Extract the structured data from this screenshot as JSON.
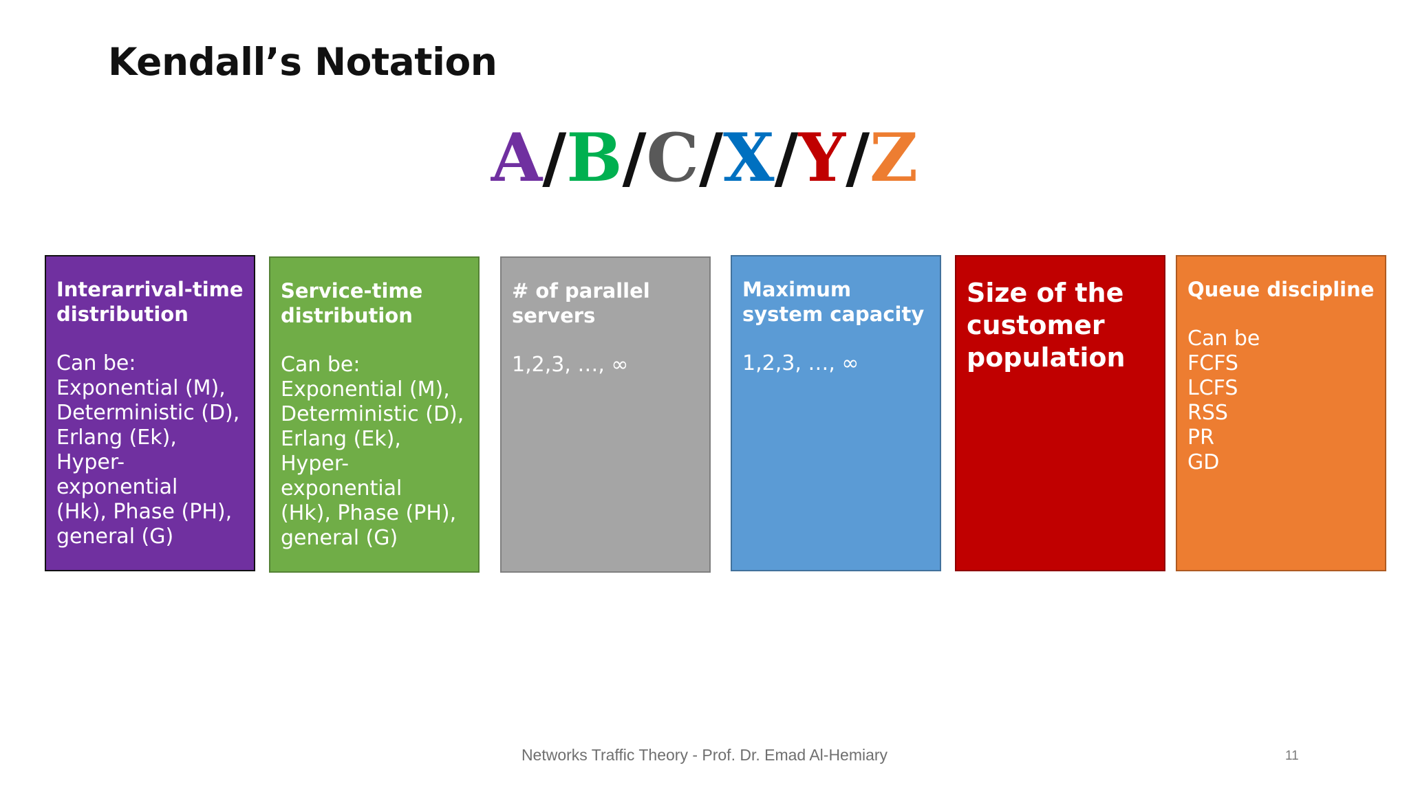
{
  "title": "Kendall’s Notation",
  "notation": {
    "letters": [
      {
        "text": "A",
        "color": "#7030a0"
      },
      {
        "text": "B",
        "color": "#00b050"
      },
      {
        "text": "C",
        "color": "#595959"
      },
      {
        "text": "X",
        "color": "#0070c0"
      },
      {
        "text": "Y",
        "color": "#c00000"
      },
      {
        "text": "Z",
        "color": "#ed7d31"
      }
    ],
    "separator": "/"
  },
  "boxes": [
    {
      "heading": "Interarrival-time distribution",
      "lines": [
        "Can be:",
        "Exponential (M),",
        "Deterministic (D),",
        "Erlang (Ek),",
        "Hyper-exponential",
        "(Hk), Phase (PH),",
        "general (G)"
      ],
      "color": "#7030a0"
    },
    {
      "heading": "Service-time distribution",
      "lines": [
        "Can be:",
        "Exponential (M),",
        "Deterministic (D),",
        "Erlang (Ek),",
        "Hyper-exponential",
        "(Hk), Phase (PH),",
        "general (G)"
      ],
      "color": "#70ad47"
    },
    {
      "heading": "# of parallel servers",
      "lines": [
        "1,2,3, …, ∞"
      ],
      "color": "#a5a5a5"
    },
    {
      "heading": "Maximum system capacity",
      "lines": [
        "1,2,3, …, ∞"
      ],
      "color": "#5b9bd5"
    },
    {
      "heading": "Size of the customer population",
      "lines": [],
      "color": "#c00000"
    },
    {
      "heading": "Queue discipline",
      "lines": [
        "Can be",
        "FCFS",
        "LCFS",
        "RSS",
        "PR",
        "GD"
      ],
      "color": "#ed7d31"
    }
  ],
  "footer": "Networks Traffic Theory - Prof. Dr. Emad Al-Hemiary",
  "page_number": "11"
}
